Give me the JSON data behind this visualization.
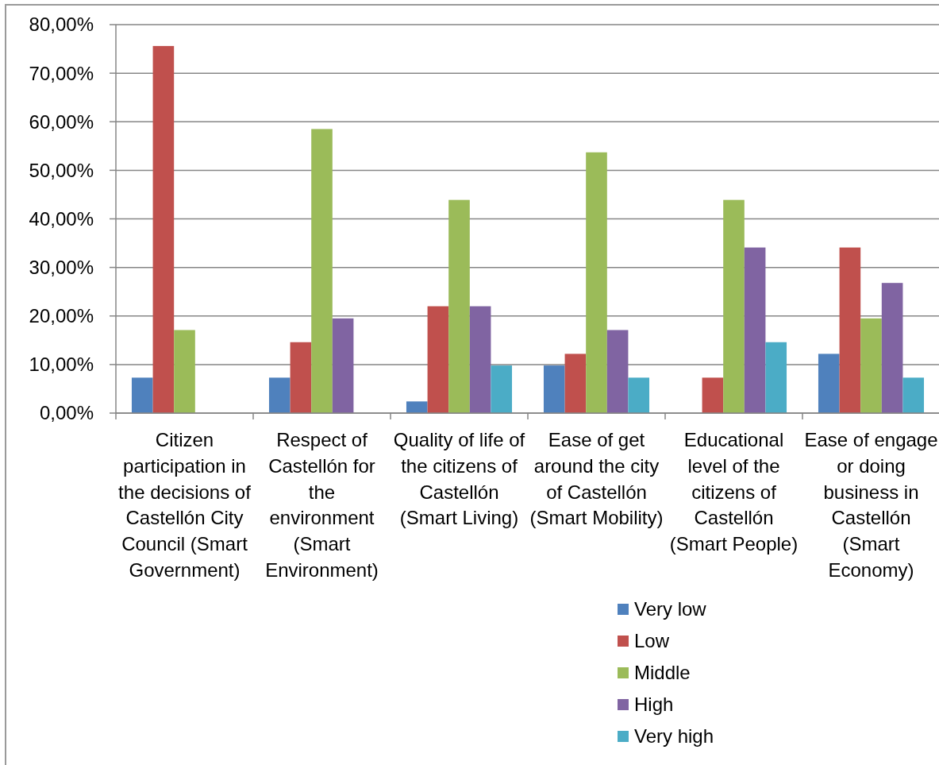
{
  "chart_data": {
    "type": "bar",
    "categories": [
      "Citizen participation in the decisions of Castellón City Council (Smart Government)",
      "Respect of Castellón for the environment (Smart Environment)",
      "Quality of life of the citizens of Castellón (Smart Living)",
      "Ease of get around the city of Castellón (Smart Mobility)",
      "Educational level of the citizens of Castellón (Smart People)",
      "Ease of engage or doing business in Castellón (Smart Economy)"
    ],
    "series": [
      {
        "name": "Very low",
        "color": "#4f81bd",
        "values": [
          7.3,
          7.3,
          2.4,
          9.8,
          0,
          12.2
        ]
      },
      {
        "name": "Low",
        "color": "#c0504d",
        "values": [
          75.6,
          14.6,
          22.0,
          12.2,
          7.3,
          34.1
        ]
      },
      {
        "name": "Middle",
        "color": "#9bbb59",
        "values": [
          17.1,
          58.5,
          43.9,
          53.7,
          43.9,
          19.5
        ]
      },
      {
        "name": "High",
        "color": "#8064a2",
        "values": [
          0,
          19.5,
          22.0,
          17.1,
          34.1,
          26.8
        ]
      },
      {
        "name": "Very high",
        "color": "#4bacc6",
        "values": [
          0,
          0,
          9.8,
          7.3,
          14.6,
          7.3
        ]
      }
    ],
    "ylim": [
      0,
      80
    ],
    "yticks": [
      {
        "value": 0,
        "label": "0,00%"
      },
      {
        "value": 10,
        "label": "10,00%"
      },
      {
        "value": 20,
        "label": "20,00%"
      },
      {
        "value": 30,
        "label": "30,00%"
      },
      {
        "value": 40,
        "label": "40,00%"
      },
      {
        "value": 50,
        "label": "50,00%"
      },
      {
        "value": 60,
        "label": "60,00%"
      },
      {
        "value": 70,
        "label": "70,00%"
      },
      {
        "value": 80,
        "label": "80,00%"
      }
    ],
    "grid": "y",
    "legend": "bottom right"
  }
}
